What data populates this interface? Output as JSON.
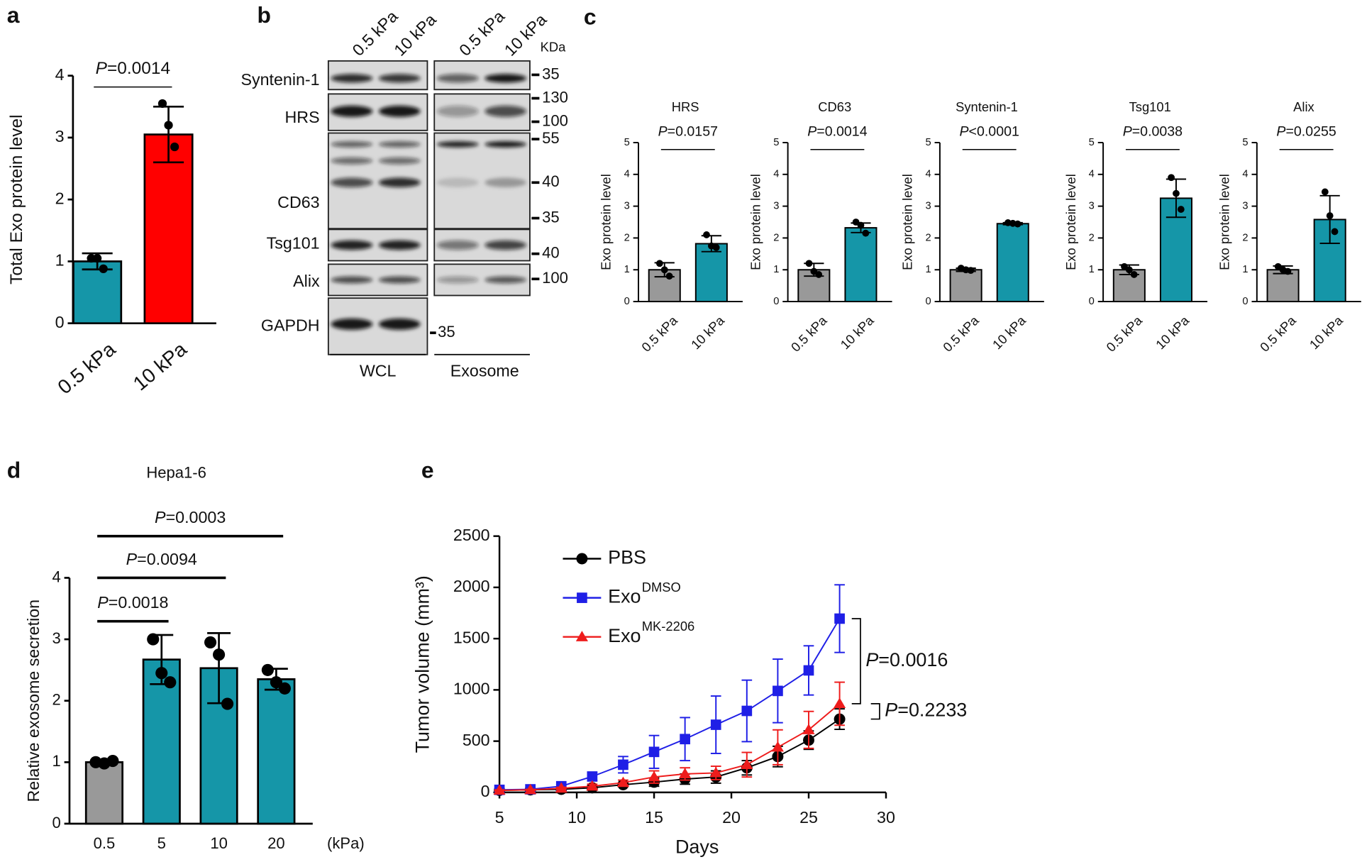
{
  "panel_labels": [
    "a",
    "b",
    "c",
    "d",
    "e"
  ],
  "chart_data": [
    {
      "type": "bar",
      "ylabel": "Total Exo protein level",
      "categories": [
        "0.5 kPa",
        "10 kPa"
      ],
      "values": [
        1.0,
        3.05
      ],
      "errors": [
        0.13,
        0.45
      ],
      "points": [
        [
          1.05,
          1.05,
          0.88
        ],
        [
          3.55,
          3.2,
          2.85
        ]
      ],
      "colors": [
        "#1596a8",
        "#ff0000"
      ],
      "ylim": [
        0,
        4
      ],
      "yticks": [
        0,
        1,
        2,
        3,
        4
      ],
      "comparisons": [
        "P=0.0014"
      ]
    },
    {
      "type": "bar",
      "title": "HRS",
      "ylabel": "Exo protein level",
      "categories": [
        "0.5 kPa",
        "10 kPa"
      ],
      "values": [
        1.0,
        1.82
      ],
      "errors": [
        0.22,
        0.25
      ],
      "points": [
        [
          1.2,
          1.0,
          0.8
        ],
        [
          2.1,
          1.75,
          1.7
        ]
      ],
      "colors": [
        "#999999",
        "#1596a8"
      ],
      "ylim": [
        0,
        5
      ],
      "yticks": [
        0,
        1,
        2,
        3,
        4,
        5
      ],
      "comparisons": [
        "P=0.0157"
      ]
    },
    {
      "type": "bar",
      "title": "CD63",
      "ylabel": "Exo protein level",
      "categories": [
        "0.5 kPa",
        "10 kPa"
      ],
      "values": [
        1.0,
        2.32
      ],
      "errors": [
        0.2,
        0.15
      ],
      "points": [
        [
          1.2,
          0.95,
          0.85
        ],
        [
          2.5,
          2.4,
          2.15
        ]
      ],
      "colors": [
        "#999999",
        "#1596a8"
      ],
      "ylim": [
        0,
        5
      ],
      "yticks": [
        0,
        1,
        2,
        3,
        4,
        5
      ],
      "comparisons": [
        "P=0.0014"
      ]
    },
    {
      "type": "bar",
      "title": "Syntenin-1",
      "ylabel": "Exo protein level",
      "categories": [
        "0.5 kPa",
        "10 kPa"
      ],
      "values": [
        1.0,
        2.45
      ],
      "errors": [
        0.05,
        0.03
      ],
      "points": [
        [
          1.05,
          1.0,
          0.98
        ],
        [
          2.48,
          2.46,
          2.44
        ]
      ],
      "colors": [
        "#999999",
        "#1596a8"
      ],
      "ylim": [
        0,
        5
      ],
      "yticks": [
        0,
        1,
        2,
        3,
        4,
        5
      ],
      "comparisons": [
        "P<0.0001"
      ]
    },
    {
      "type": "bar",
      "title": "Tsg101",
      "ylabel": "Exo protein level",
      "categories": [
        "0.5 kPa",
        "10 kPa"
      ],
      "values": [
        1.0,
        3.25
      ],
      "errors": [
        0.15,
        0.6
      ],
      "points": [
        [
          1.1,
          1.0,
          0.85
        ],
        [
          3.9,
          3.4,
          2.9
        ]
      ],
      "colors": [
        "#999999",
        "#1596a8"
      ],
      "ylim": [
        0,
        5
      ],
      "yticks": [
        0,
        1,
        2,
        3,
        4,
        5
      ],
      "comparisons": [
        "P=0.0038"
      ]
    },
    {
      "type": "bar",
      "title": "Alix",
      "ylabel": "Exo protein level",
      "categories": [
        "0.5 kPa",
        "10 kPa"
      ],
      "values": [
        1.0,
        2.58
      ],
      "errors": [
        0.12,
        0.75
      ],
      "points": [
        [
          1.1,
          1.0,
          0.95
        ],
        [
          3.45,
          2.7,
          2.2
        ]
      ],
      "colors": [
        "#999999",
        "#1596a8"
      ],
      "ylim": [
        0,
        5
      ],
      "yticks": [
        0,
        1,
        2,
        3,
        4,
        5
      ],
      "comparisons": [
        "P=0.0255"
      ]
    },
    {
      "type": "bar",
      "title": "Hepa1-6",
      "ylabel": "Relative exosome secretion",
      "xlabel": "(kPa)",
      "categories": [
        "0.5",
        "5",
        "10",
        "20"
      ],
      "values": [
        1.0,
        2.67,
        2.53,
        2.35
      ],
      "errors": [
        0.04,
        0.4,
        0.57,
        0.17
      ],
      "points": [
        [
          1.0,
          0.98,
          1.02
        ],
        [
          3.0,
          2.45,
          2.3
        ],
        [
          2.95,
          2.75,
          1.95
        ],
        [
          2.5,
          2.3,
          2.2
        ]
      ],
      "colors": [
        "#999999",
        "#1596a8",
        "#1596a8",
        "#1596a8"
      ],
      "ylim": [
        0,
        4
      ],
      "yticks": [
        0,
        1,
        2,
        3,
        4
      ],
      "comparisons": [
        "P=0.0018",
        "P=0.0094",
        "P=0.0003"
      ]
    },
    {
      "type": "line",
      "xlabel": "Days",
      "ylabel": "Tumor volume (mm³)",
      "x": [
        5,
        7,
        9,
        11,
        13,
        15,
        17,
        19,
        21,
        23,
        25,
        27
      ],
      "series": [
        {
          "name": "PBS",
          "color": "#000000",
          "marker": "circle",
          "values": [
            20,
            25,
            30,
            45,
            75,
            100,
            130,
            150,
            240,
            350,
            510,
            715
          ],
          "errors": [
            5,
            5,
            8,
            10,
            15,
            40,
            50,
            60,
            70,
            100,
            90,
            100
          ]
        },
        {
          "name": "Exo",
          "superscript": "DMSO",
          "color": "#1f1fe6",
          "marker": "square",
          "values": [
            25,
            30,
            60,
            155,
            270,
            395,
            520,
            660,
            795,
            990,
            1190,
            1695
          ],
          "errors": [
            5,
            8,
            15,
            40,
            80,
            160,
            210,
            280,
            300,
            310,
            240,
            330
          ]
        },
        {
          "name": "Exo",
          "superscript": "MK-2206",
          "color": "#ee1c1c",
          "marker": "triangle",
          "values": [
            20,
            25,
            40,
            60,
            95,
            150,
            180,
            190,
            270,
            440,
            610,
            865
          ],
          "errors": [
            5,
            5,
            10,
            20,
            25,
            60,
            60,
            65,
            120,
            170,
            180,
            210
          ]
        }
      ],
      "xlim": [
        5,
        30
      ],
      "xticks": [
        5,
        10,
        15,
        20,
        25,
        30
      ],
      "ylim": [
        0,
        2500
      ],
      "yticks": [
        0,
        500,
        1000,
        1500,
        2000,
        2500
      ],
      "comparisons": [
        "P=0.0016",
        "P=0.2233"
      ]
    }
  ],
  "blot": {
    "columns": [
      "0.5 kPa",
      "10 kPa",
      "0.5 kPa",
      "10 kPa"
    ],
    "unit": "KDa",
    "rows": [
      "Syntenin-1",
      "HRS",
      "CD63",
      "Tsg101",
      "Alix",
      "GAPDH"
    ],
    "markers": [
      35,
      130,
      100,
      55,
      40,
      35,
      40,
      100,
      35
    ],
    "groups": [
      "WCL",
      "Exosome"
    ]
  }
}
